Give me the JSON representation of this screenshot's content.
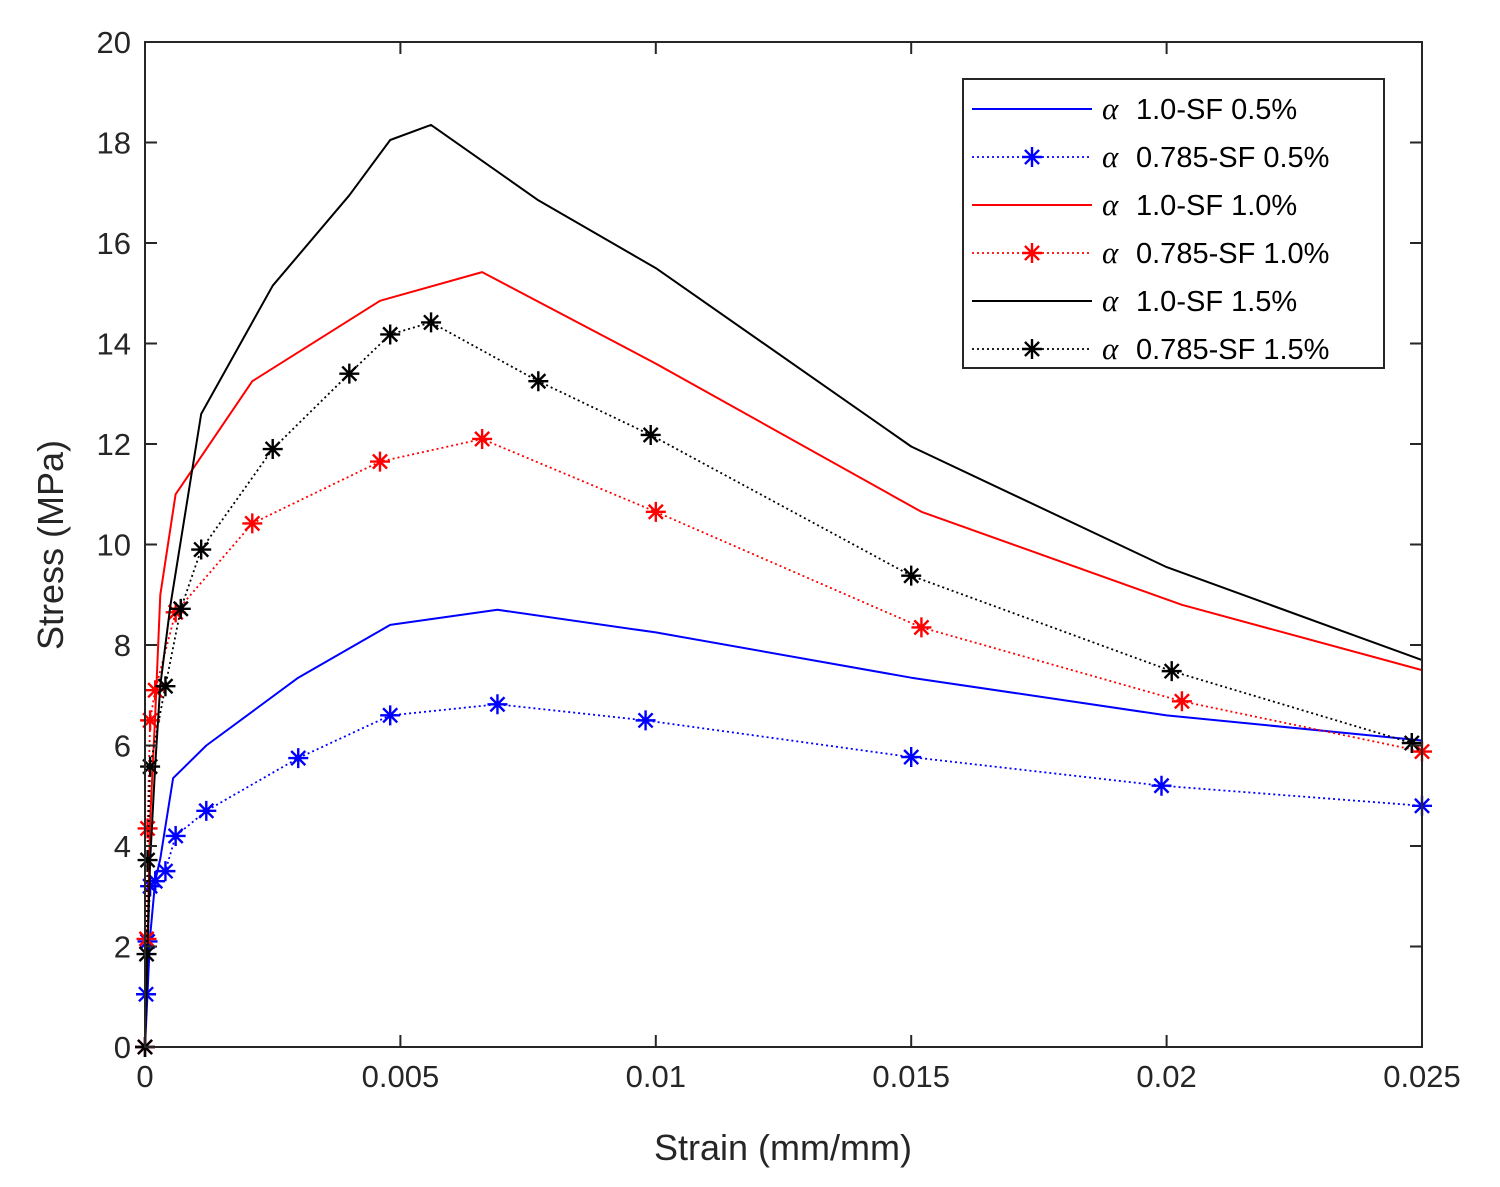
{
  "chart_data": {
    "type": "line",
    "title": "",
    "xlabel": "Strain (mm/mm)",
    "ylabel": "Stress (MPa)",
    "xlim": [
      0,
      0.025
    ],
    "ylim": [
      0,
      20
    ],
    "grid": false,
    "legend_position": "top-right",
    "x_ticks": [
      {
        "value": 0,
        "label": "0"
      },
      {
        "value": 0.005,
        "label": "0.005"
      },
      {
        "value": 0.01,
        "label": "0.01"
      },
      {
        "value": 0.015,
        "label": "0.015"
      },
      {
        "value": 0.02,
        "label": "0.02"
      },
      {
        "value": 0.025,
        "label": "0.025"
      }
    ],
    "y_ticks": [
      {
        "value": 0,
        "label": "0"
      },
      {
        "value": 2,
        "label": "2"
      },
      {
        "value": 4,
        "label": "4"
      },
      {
        "value": 6,
        "label": "6"
      },
      {
        "value": 8,
        "label": "8"
      },
      {
        "value": 10,
        "label": "10"
      },
      {
        "value": 12,
        "label": "12"
      },
      {
        "value": 14,
        "label": "14"
      },
      {
        "value": 16,
        "label": "16"
      },
      {
        "value": 18,
        "label": "18"
      },
      {
        "value": 20,
        "label": "20"
      }
    ],
    "series": [
      {
        "name": "1.0-SF 0.5%",
        "alpha_symbol": "α",
        "color": "#0000ff",
        "line_style": "solid",
        "marker": "none",
        "x": [
          0,
          5e-05,
          0.0001,
          0.0002,
          0.0003,
          0.00055,
          0.0012,
          0.003,
          0.0048,
          0.0069,
          0.01,
          0.015,
          0.02,
          0.025
        ],
        "y": [
          0,
          1.1,
          2.2,
          3.3,
          3.75,
          5.35,
          6.0,
          7.35,
          8.4,
          8.7,
          8.25,
          7.35,
          6.6,
          6.1
        ]
      },
      {
        "name": "0.785-SF 0.5%",
        "alpha_symbol": "α",
        "color": "#0000ff",
        "line_style": "dotted",
        "marker": "asterisk",
        "x": [
          0,
          2e-05,
          5e-05,
          0.0001,
          0.0002,
          0.0004,
          0.0006,
          0.0012,
          0.003,
          0.0048,
          0.0069,
          0.0098,
          0.015,
          0.0199,
          0.025
        ],
        "y": [
          0,
          1.05,
          2.1,
          3.2,
          3.3,
          3.5,
          4.2,
          4.7,
          5.75,
          6.6,
          6.82,
          6.5,
          5.77,
          5.2,
          4.8
        ]
      },
      {
        "name": "1.0-SF 1.0%",
        "alpha_symbol": "α",
        "color": "#ff0000",
        "line_style": "solid",
        "marker": "none",
        "x": [
          0,
          5e-05,
          0.0001,
          0.0002,
          0.0003,
          0.0006,
          0.0021,
          0.0046,
          0.0066,
          0.01,
          0.0152,
          0.0203,
          0.025
        ],
        "y": [
          0,
          2.2,
          4.5,
          6.6,
          9.0,
          11.0,
          13.25,
          14.85,
          15.42,
          13.6,
          10.65,
          8.8,
          7.5
        ]
      },
      {
        "name": "0.785-SF 1.0%",
        "alpha_symbol": "α",
        "color": "#ff0000",
        "line_style": "dotted",
        "marker": "asterisk",
        "x": [
          0,
          3e-05,
          5e-05,
          0.0001,
          0.0002,
          0.0006,
          0.0021,
          0.0046,
          0.0066,
          0.01,
          0.0152,
          0.0203,
          0.025
        ],
        "y": [
          0,
          2.15,
          4.35,
          6.5,
          7.1,
          8.65,
          10.42,
          11.65,
          12.1,
          10.65,
          8.35,
          6.88,
          5.88
        ]
      },
      {
        "name": "1.0-SF 1.5%",
        "alpha_symbol": "α",
        "color": "#000000",
        "line_style": "solid",
        "marker": "none",
        "x": [
          0,
          5e-05,
          0.0001,
          0.0002,
          0.0003,
          0.0005,
          0.0011,
          0.0025,
          0.004,
          0.0048,
          0.0056,
          0.0077,
          0.01,
          0.015,
          0.02,
          0.025
        ],
        "y": [
          0,
          1.9,
          3.7,
          5.6,
          7.2,
          8.8,
          12.6,
          15.15,
          16.95,
          18.05,
          18.35,
          16.85,
          15.5,
          11.95,
          9.55,
          7.7
        ]
      },
      {
        "name": "0.785-SF 1.5%",
        "alpha_symbol": "α",
        "color": "#000000",
        "line_style": "dotted",
        "marker": "asterisk",
        "x": [
          0,
          3e-05,
          5e-05,
          0.0001,
          0.0004,
          0.0007,
          0.0011,
          0.0025,
          0.004,
          0.0048,
          0.0056,
          0.0077,
          0.0099,
          0.015,
          0.0201,
          0.0248
        ],
        "y": [
          0,
          1.85,
          3.72,
          5.58,
          7.18,
          8.72,
          9.9,
          11.9,
          13.4,
          14.18,
          14.42,
          13.25,
          12.18,
          9.38,
          7.48,
          6.05
        ]
      }
    ]
  },
  "colors": {
    "blue": "#0000ff",
    "red": "#ff0000",
    "black": "#000000",
    "axis": "#262626"
  }
}
